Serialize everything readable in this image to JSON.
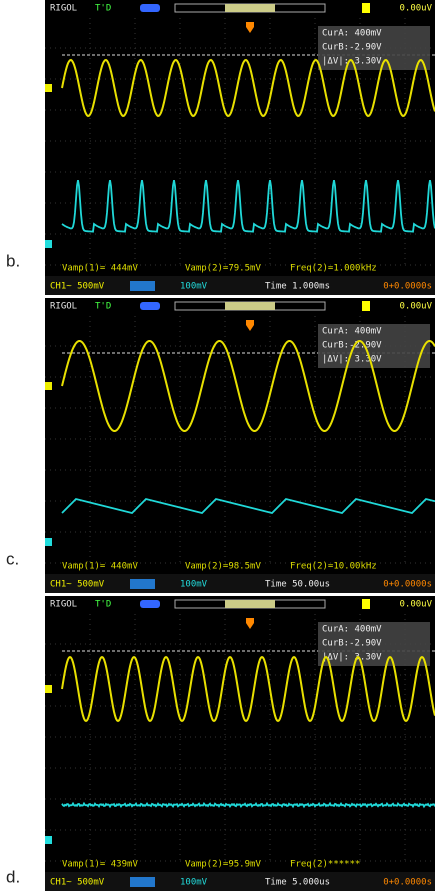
{
  "panels": [
    {
      "label": "b.",
      "header": {
        "brand": "RIGOL",
        "trigger": "T'D",
        "trigger_level": "0.00uV"
      },
      "cursors": [
        "CurA: 400mV",
        "CurB:-2.90V",
        "|ΔV|: 3.30V"
      ],
      "measurements": [
        "Vamp(1)= 444mV",
        "Vamp(2)=79.5mV",
        "Freq(2)=1.000kHz"
      ],
      "status": {
        "ch1": "CH1~ 500mV",
        "ch2": "100mV",
        "time": "Time 1.000ms",
        "offset": "0+0.0000s"
      }
    },
    {
      "label": "c.",
      "header": {
        "brand": "RIGOL",
        "trigger": "T'D",
        "trigger_level": "0.00uV"
      },
      "cursors": [
        "CurA: 400mV",
        "CurB:-2.90V",
        "|ΔV|: 3.30V"
      ],
      "measurements": [
        "Vamp(1)= 440mV",
        "Vamp(2)=98.5mV",
        "Freq(2)=10.00kHz"
      ],
      "status": {
        "ch1": "CH1~ 500mV",
        "ch2": "100mV",
        "time": "Time 50.00us",
        "offset": "0+0.0000s"
      }
    },
    {
      "label": "d.",
      "header": {
        "brand": "RIGOL",
        "trigger": "T'D",
        "trigger_level": "0.00uV"
      },
      "cursors": [
        "CurA: 400mV",
        "CurB:-2.90V",
        "|ΔV|: 3.30V"
      ],
      "measurements": [
        "Vamp(1)= 439mV",
        "Vamp(2)=95.9mV",
        "Freq(2)******"
      ],
      "status": {
        "ch1": "CH1~ 500mV",
        "ch2": "100mV",
        "time": "Time 5.000us",
        "offset": "0+0.0000s"
      }
    }
  ]
}
